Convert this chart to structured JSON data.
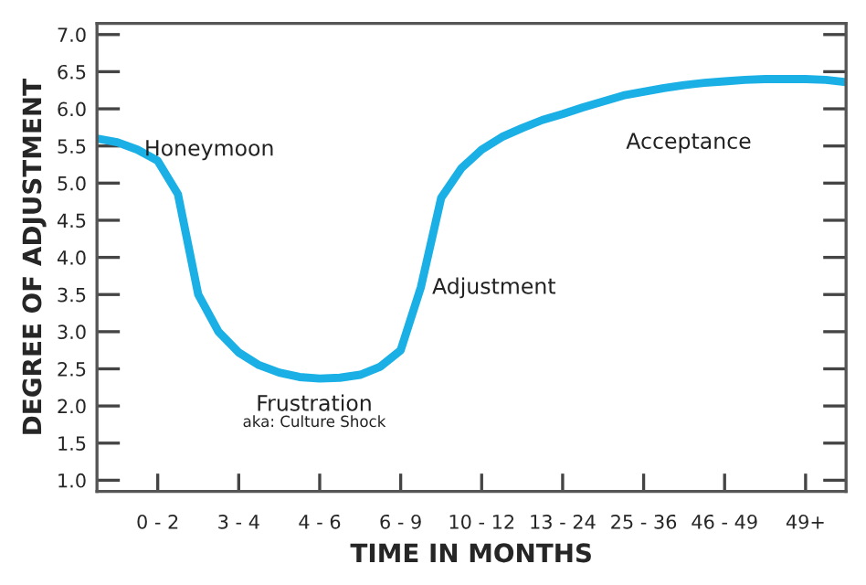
{
  "chart_data": {
    "type": "line",
    "xlabel": "TIME IN MONTHS",
    "ylabel": "DEGREE OF ADJUSTMENT",
    "categories": [
      null,
      null,
      null,
      "0 - 2",
      null,
      null,
      null,
      "3 - 4",
      null,
      null,
      null,
      "4 - 6",
      null,
      null,
      null,
      "6 - 9",
      null,
      null,
      null,
      "10 - 12",
      null,
      null,
      null,
      "13 - 24",
      null,
      null,
      null,
      "25 - 36",
      null,
      null,
      null,
      "46 - 49",
      null,
      null,
      null,
      "49+",
      null,
      null
    ],
    "ylim": [
      0.85,
      7.15
    ],
    "yticks": [
      {
        "value": 1.0,
        "label": "1.0"
      },
      1.5,
      {
        "value": 2.0,
        "label": "2.0"
      },
      2.5,
      {
        "value": 3.0,
        "label": "3.0"
      },
      3.5,
      {
        "value": 4.0,
        "label": "4.0"
      },
      4.5,
      {
        "value": 5.0,
        "label": "5.0"
      },
      5.5,
      {
        "value": 6.0,
        "label": "6.0"
      },
      6.5,
      {
        "value": 7.0,
        "label": "7.0"
      }
    ],
    "marker": "none",
    "line_style": "solid",
    "series": [
      {
        "color": "#1ab0e6",
        "values": [
          5.6,
          5.55,
          5.45,
          5.3,
          4.85,
          3.5,
          3.0,
          2.72,
          2.55,
          2.45,
          2.39,
          2.37,
          2.38,
          2.42,
          2.53,
          2.75,
          3.6,
          4.8,
          5.2,
          5.45,
          5.62,
          5.74,
          5.85,
          5.93,
          6.02,
          6.1,
          6.18,
          6.23,
          6.28,
          6.32,
          6.35,
          6.37,
          6.39,
          6.4,
          6.4,
          6.4,
          6.39,
          6.36
        ]
      }
    ],
    "annotations": [
      "Honeymoon",
      "Frustration",
      "aka: Culture Shock",
      "Adjustment",
      "Acceptance"
    ]
  }
}
